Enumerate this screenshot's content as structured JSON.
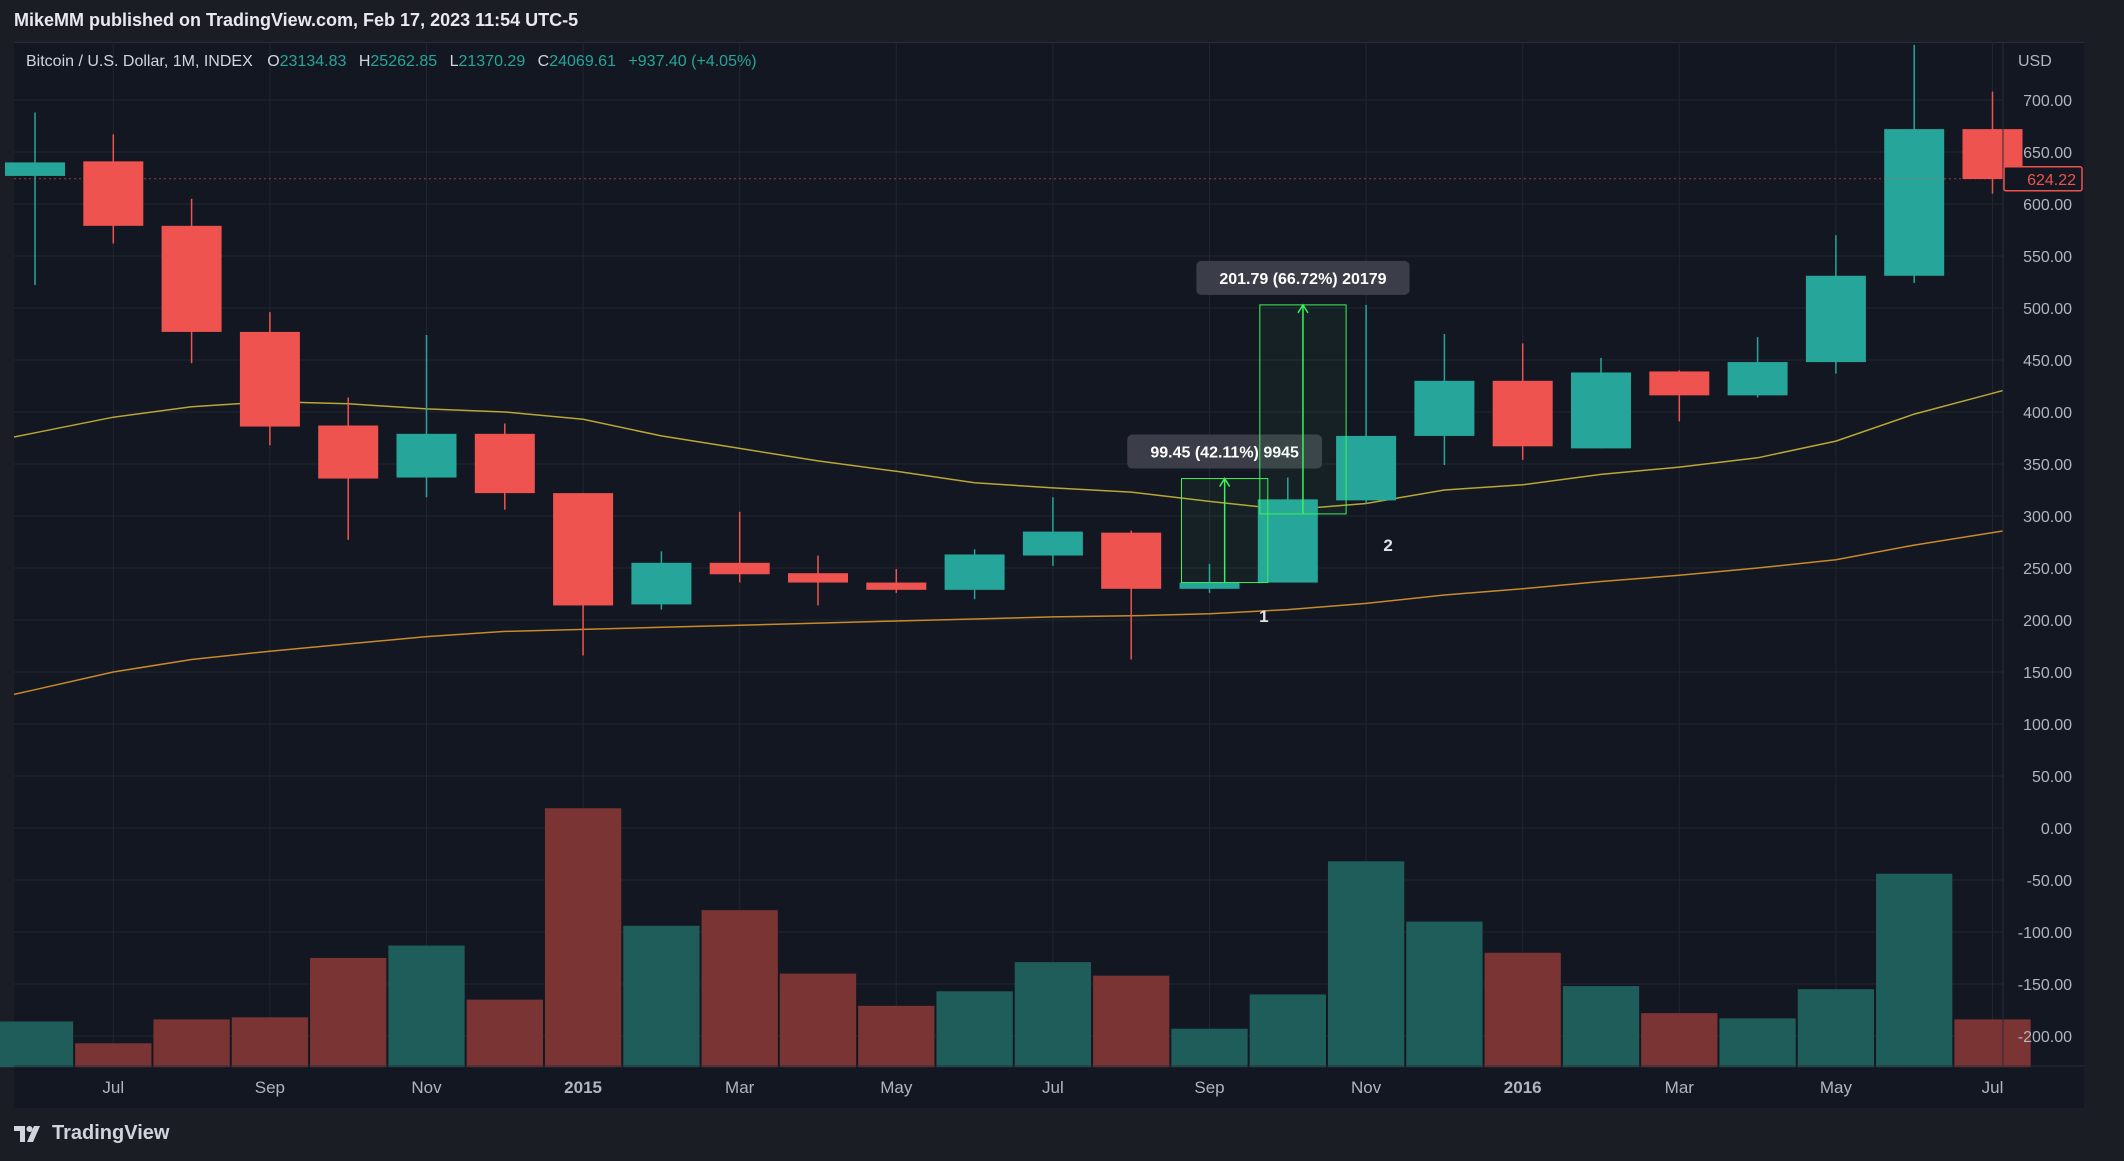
{
  "header": {
    "attribution": "MikeMM published on TradingView.com, Feb 17, 2023 11:54 UTC-5"
  },
  "legend": {
    "symbol": "Bitcoin / U.S. Dollar, 1M, INDEX",
    "o_label": "O",
    "o_value": "23134.83",
    "h_label": "H",
    "h_value": "25262.85",
    "l_label": "L",
    "l_value": "21370.29",
    "c_label": "C",
    "c_value": "24069.61",
    "change": "+937.40 (+4.05%)"
  },
  "footer": {
    "brand": "TradingView",
    "logo_icon": "tradingview-logo-icon"
  },
  "colors": {
    "up": "#26a69a",
    "down": "#ef5350",
    "up_volume": "#1f5d5a",
    "down_volume": "#7a3434",
    "ma_short": "#b8a734",
    "ma_long": "#c98a2a",
    "background": "#131722",
    "grid": "#22262f",
    "measure": "#3ff05a"
  },
  "chart_data": {
    "type": "candlestick",
    "currency_label": "USD",
    "y_ticks": [
      "700.00",
      "650.00",
      "600.00",
      "550.00",
      "500.00",
      "450.00",
      "400.00",
      "350.00",
      "300.00",
      "250.00",
      "200.00",
      "150.00",
      "100.00",
      "50.00",
      "0.00",
      "-50.00",
      "-100.00",
      "-150.00",
      "-200.00"
    ],
    "ylim": [
      -230,
      745
    ],
    "x_tick_labels": [
      {
        "index": 1,
        "label": "Jul",
        "bold": false
      },
      {
        "index": 3,
        "label": "Sep",
        "bold": false
      },
      {
        "index": 5,
        "label": "Nov",
        "bold": false
      },
      {
        "index": 7,
        "label": "2015",
        "bold": true
      },
      {
        "index": 9,
        "label": "Mar",
        "bold": false
      },
      {
        "index": 11,
        "label": "May",
        "bold": false
      },
      {
        "index": 13,
        "label": "Jul",
        "bold": false
      },
      {
        "index": 15,
        "label": "Sep",
        "bold": false
      },
      {
        "index": 17,
        "label": "Nov",
        "bold": false
      },
      {
        "index": 19,
        "label": "2016",
        "bold": true
      },
      {
        "index": 21,
        "label": "Mar",
        "bold": false
      },
      {
        "index": 23,
        "label": "May",
        "bold": false
      },
      {
        "index": 25,
        "label": "Jul",
        "bold": false
      }
    ],
    "candles": [
      {
        "o": 627,
        "h": 688,
        "l": 522,
        "c": 640
      },
      {
        "o": 641,
        "h": 667,
        "l": 562,
        "c": 579
      },
      {
        "o": 579,
        "h": 605,
        "l": 447,
        "c": 477
      },
      {
        "o": 477,
        "h": 496,
        "l": 368,
        "c": 386
      },
      {
        "o": 387,
        "h": 414,
        "l": 277,
        "c": 336
      },
      {
        "o": 337,
        "h": 474,
        "l": 318,
        "c": 379
      },
      {
        "o": 379,
        "h": 389,
        "l": 306,
        "c": 322
      },
      {
        "o": 322,
        "h": 322,
        "l": 166,
        "c": 214
      },
      {
        "o": 215,
        "h": 266,
        "l": 210,
        "c": 255
      },
      {
        "o": 255,
        "h": 304,
        "l": 236,
        "c": 244
      },
      {
        "o": 245,
        "h": 262,
        "l": 214,
        "c": 236
      },
      {
        "o": 236,
        "h": 249,
        "l": 226,
        "c": 229
      },
      {
        "o": 229,
        "h": 268,
        "l": 220,
        "c": 263
      },
      {
        "o": 262,
        "h": 318,
        "l": 252,
        "c": 285
      },
      {
        "o": 284,
        "h": 286,
        "l": 162,
        "c": 230
      },
      {
        "o": 230,
        "h": 254,
        "l": 226,
        "c": 236
      },
      {
        "o": 236,
        "h": 337,
        "l": 236,
        "c": 316
      },
      {
        "o": 315,
        "h": 503,
        "l": 312,
        "c": 377
      },
      {
        "o": 377,
        "h": 475,
        "l": 349,
        "c": 430
      },
      {
        "o": 430,
        "h": 466,
        "l": 354,
        "c": 367
      },
      {
        "o": 365,
        "h": 452,
        "l": 365,
        "c": 438
      },
      {
        "o": 439,
        "h": 440,
        "l": 391,
        "c": 416
      },
      {
        "o": 416,
        "h": 472,
        "l": 414,
        "c": 448
      },
      {
        "o": 448,
        "h": 570,
        "l": 437,
        "c": 531
      },
      {
        "o": 531,
        "h": 753,
        "l": 524,
        "c": 672
      },
      {
        "o": 672,
        "h": 708,
        "l": 610,
        "c": 624
      }
    ],
    "volume_values": [
      -186,
      -207,
      -184,
      -182,
      -125,
      -113,
      -165,
      19,
      -94,
      -79,
      -140,
      -171,
      -157,
      -129,
      -142,
      -193,
      -160,
      -32,
      -90,
      -120,
      -152,
      -178,
      -183,
      -155,
      -44,
      -184
    ],
    "ma_short": [
      380,
      395,
      405,
      410,
      408,
      403,
      400,
      393,
      377,
      365,
      353,
      343,
      332,
      327,
      323,
      314,
      306,
      312,
      325,
      330,
      340,
      347,
      356,
      372,
      398,
      418
    ],
    "ma_long": [
      133,
      150,
      162,
      170,
      177,
      184,
      189,
      191,
      193,
      195,
      197,
      199,
      201,
      203,
      204,
      206,
      210,
      216,
      224,
      230,
      237,
      243,
      250,
      258,
      272,
      284
    ],
    "last_price": "624.22",
    "measurements": [
      {
        "label": "99.45 (42.11%) 9945",
        "from_index": 15,
        "from_value": 236,
        "to_index": 16,
        "to_value": 336
      },
      {
        "label": "201.79 (66.72%) 20179",
        "from_index": 16,
        "from_value": 302,
        "to_index": 17,
        "to_value": 503
      }
    ],
    "point_labels": [
      {
        "label": "1",
        "index": 16,
        "value": 204
      },
      {
        "label": "2",
        "index": 17,
        "value": 272
      }
    ]
  }
}
